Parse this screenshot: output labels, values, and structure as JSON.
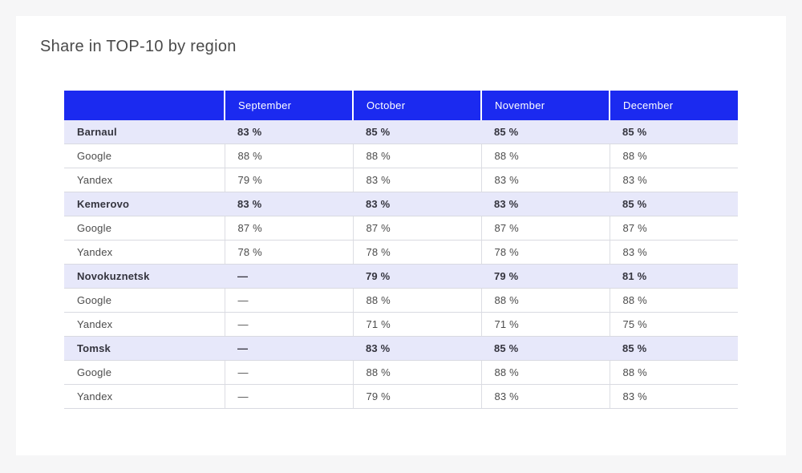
{
  "page": {
    "title": "Share in TOP-10 by region"
  },
  "colors": {
    "page_background": "#f6f6f7",
    "card_background": "#ffffff",
    "header_background": "#1b2af0",
    "header_text": "#ffffff",
    "region_row_background": "#e7e8fa",
    "body_text": "#4c4c4c",
    "region_text": "#34343e",
    "row_border": "#d9dae1",
    "title_text": "#4a4a4a"
  },
  "table": {
    "columns": [
      "",
      "September",
      "October",
      "November",
      "December"
    ],
    "rows": [
      {
        "type": "region",
        "label": "Barnaul",
        "values": [
          "83 %",
          "85 %",
          "85 %",
          "85 %"
        ]
      },
      {
        "type": "engine",
        "label": "Google",
        "values": [
          "88 %",
          "88 %",
          "88 %",
          "88 %"
        ]
      },
      {
        "type": "engine",
        "label": "Yandex",
        "values": [
          "79 %",
          "83 %",
          "83 %",
          "83 %"
        ]
      },
      {
        "type": "region",
        "label": "Kemerovo",
        "values": [
          "83 %",
          "83 %",
          "83 %",
          "85 %"
        ]
      },
      {
        "type": "engine",
        "label": "Google",
        "values": [
          "87 %",
          "87 %",
          "87 %",
          "87 %"
        ]
      },
      {
        "type": "engine",
        "label": "Yandex",
        "values": [
          "78 %",
          "78 %",
          "78 %",
          "83 %"
        ]
      },
      {
        "type": "region",
        "label": "Novokuznetsk",
        "values": [
          "—",
          "79 %",
          "79 %",
          "81 %"
        ]
      },
      {
        "type": "engine",
        "label": "Google",
        "values": [
          "—",
          "88 %",
          "88 %",
          "88 %"
        ]
      },
      {
        "type": "engine",
        "label": "Yandex",
        "values": [
          "—",
          "71 %",
          "71 %",
          "75 %"
        ]
      },
      {
        "type": "region",
        "label": "Tomsk",
        "values": [
          "—",
          "83 %",
          "85 %",
          "85 %"
        ]
      },
      {
        "type": "engine",
        "label": "Google",
        "values": [
          "—",
          "88 %",
          "88 %",
          "88 %"
        ]
      },
      {
        "type": "engine",
        "label": "Yandex",
        "values": [
          "—",
          "79 %",
          "83 %",
          "83 %"
        ]
      }
    ]
  },
  "chart_data": {
    "type": "table",
    "title": "Share in TOP-10 by region",
    "columns": [
      "",
      "September",
      "October",
      "November",
      "December"
    ],
    "rows": [
      [
        "Barnaul",
        "83 %",
        "85 %",
        "85 %",
        "85 %"
      ],
      [
        "Google",
        "88 %",
        "88 %",
        "88 %",
        "88 %"
      ],
      [
        "Yandex",
        "79 %",
        "83 %",
        "83 %",
        "83 %"
      ],
      [
        "Kemerovo",
        "83 %",
        "83 %",
        "83 %",
        "85 %"
      ],
      [
        "Google",
        "87 %",
        "87 %",
        "87 %",
        "87 %"
      ],
      [
        "Yandex",
        "78 %",
        "78 %",
        "78 %",
        "83 %"
      ],
      [
        "Novokuznetsk",
        "—",
        "79 %",
        "79 %",
        "81 %"
      ],
      [
        "Google",
        "—",
        "88 %",
        "88 %",
        "88 %"
      ],
      [
        "Yandex",
        "—",
        "71 %",
        "71 %",
        "75 %"
      ],
      [
        "Tomsk",
        "—",
        "83 %",
        "85 %",
        "85 %"
      ],
      [
        "Google",
        "—",
        "88 %",
        "88 %",
        "88 %"
      ],
      [
        "Yandex",
        "—",
        "79 %",
        "83 %",
        "83 %"
      ]
    ],
    "notes": "Region rows (Barnaul, Kemerovo, Novokuznetsk, Tomsk) are bold summary rows with lavender background; Google/Yandex rows are sub-rows. '—' means no data."
  }
}
